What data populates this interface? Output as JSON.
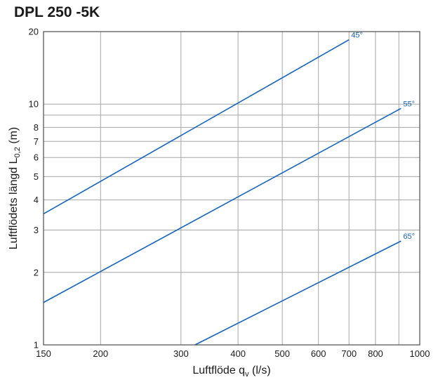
{
  "chart_data": {
    "type": "line",
    "title": "DPL 250 -5K",
    "xlabel": {
      "main": "Luftflöde q",
      "sub": "v",
      "tail": " (l/s)"
    },
    "ylabel": {
      "main": "Luftflödets längd L",
      "sub": "0,2",
      "tail": " (m)"
    },
    "x_scale": "log",
    "y_scale": "log",
    "xlim": [
      150,
      1000
    ],
    "ylim": [
      1,
      20
    ],
    "grid": true,
    "x_ticks": [
      150,
      200,
      300,
      400,
      500,
      600,
      700,
      800,
      1000
    ],
    "y_ticks": [
      1,
      2,
      3,
      4,
      5,
      6,
      7,
      8,
      10,
      20
    ],
    "series": [
      {
        "name": "45°",
        "x": [
          150,
          700
        ],
        "y": [
          3.5,
          18.5
        ]
      },
      {
        "name": "55°",
        "x": [
          150,
          910
        ],
        "y": [
          1.5,
          9.6
        ]
      },
      {
        "name": "65°",
        "x": [
          322,
          910
        ],
        "y": [
          1.0,
          2.7
        ]
      }
    ],
    "colors": {
      "line": "#1565c0",
      "grid": "#a6a6a6",
      "frame": "#4d4d4d"
    }
  }
}
